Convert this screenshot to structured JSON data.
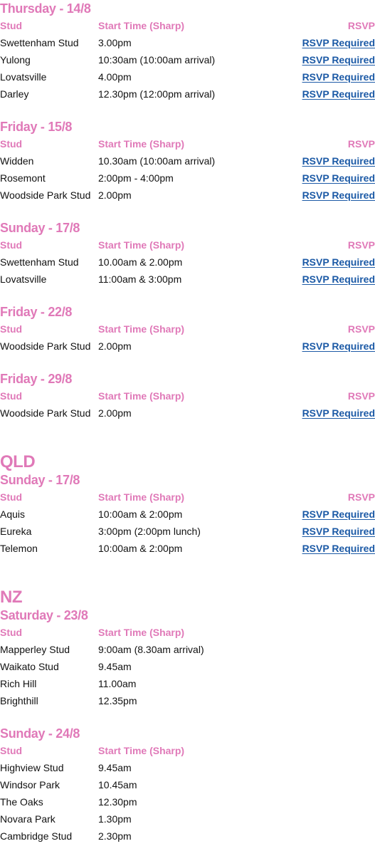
{
  "columns": {
    "stud": "Stud",
    "start_time": "Start Time (Sharp)",
    "rsvp": "RSVP"
  },
  "rsvp_link_label": "RSVP Required",
  "colors": {
    "heading": "#e079b8",
    "link": "#1c5aa6",
    "text": "#111111"
  },
  "regions": [
    {
      "title": "",
      "days": [
        {
          "heading": "Thursday - 14/8",
          "has_rsvp": true,
          "rows": [
            {
              "stud": "Swettenham Stud",
              "time": "3.00pm",
              "rsvp": "RSVP Required"
            },
            {
              "stud": "Yulong",
              "time": "10:30am (10:00am arrival)",
              "rsvp": "RSVP Required"
            },
            {
              "stud": "Lovatsville",
              "time": "4.00pm",
              "rsvp": "RSVP Required"
            },
            {
              "stud": "Darley",
              "time": "12.30pm (12:00pm arrival)",
              "rsvp": "RSVP Required"
            }
          ]
        },
        {
          "heading": "Friday - 15/8",
          "has_rsvp": true,
          "rows": [
            {
              "stud": "Widden",
              "time": "10.30am (10:00am arrival)",
              "rsvp": "RSVP Required"
            },
            {
              "stud": "Rosemont",
              "time": "2:00pm - 4:00pm",
              "rsvp": "RSVP Required"
            },
            {
              "stud": "Woodside Park Stud",
              "time": "2.00pm",
              "rsvp": "RSVP Required"
            }
          ]
        },
        {
          "heading": "Sunday - 17/8",
          "has_rsvp": true,
          "rows": [
            {
              "stud": "Swettenham Stud",
              "time": "10.00am & 2.00pm",
              "rsvp": "RSVP Required"
            },
            {
              "stud": "Lovatsville",
              "time": "11:00am & 3:00pm",
              "rsvp": "RSVP Required"
            }
          ]
        },
        {
          "heading": "Friday - 22/8",
          "has_rsvp": true,
          "rows": [
            {
              "stud": "Woodside Park Stud",
              "time": "2.00pm",
              "rsvp": "RSVP Required"
            }
          ]
        },
        {
          "heading": "Friday - 29/8",
          "has_rsvp": true,
          "rows": [
            {
              "stud": "Woodside Park Stud",
              "time": "2.00pm",
              "rsvp": "RSVP Required"
            }
          ]
        }
      ]
    },
    {
      "title": "QLD",
      "days": [
        {
          "heading": "Sunday - 17/8",
          "has_rsvp": true,
          "rows": [
            {
              "stud": "Aquis",
              "time": "10:00am & 2:00pm",
              "rsvp": "RSVP Required"
            },
            {
              "stud": "Eureka",
              "time": "3:00pm (2:00pm lunch)",
              "rsvp": "RSVP Required"
            },
            {
              "stud": "Telemon",
              "time": "10:00am & 2:00pm",
              "rsvp": "RSVP Required"
            }
          ]
        }
      ]
    },
    {
      "title": "NZ",
      "days": [
        {
          "heading": "Saturday - 23/8",
          "has_rsvp": false,
          "rows": [
            {
              "stud": "Mapperley Stud",
              "time": "9:00am (8.30am arrival)"
            },
            {
              "stud": "Waikato Stud",
              "time": "9.45am"
            },
            {
              "stud": "Rich Hill",
              "time": "11.00am"
            },
            {
              "stud": "Brighthill",
              "time": "12.35pm"
            }
          ]
        },
        {
          "heading": "Sunday - 24/8",
          "has_rsvp": false,
          "rows": [
            {
              "stud": "Highview Stud",
              "time": "9.45am"
            },
            {
              "stud": "Windsor Park",
              "time": "10.45am"
            },
            {
              "stud": "The Oaks",
              "time": "12.30pm"
            },
            {
              "stud": "Novara Park",
              "time": "1.30pm"
            },
            {
              "stud": "Cambridge Stud",
              "time": "2.30pm"
            }
          ]
        }
      ]
    }
  ]
}
